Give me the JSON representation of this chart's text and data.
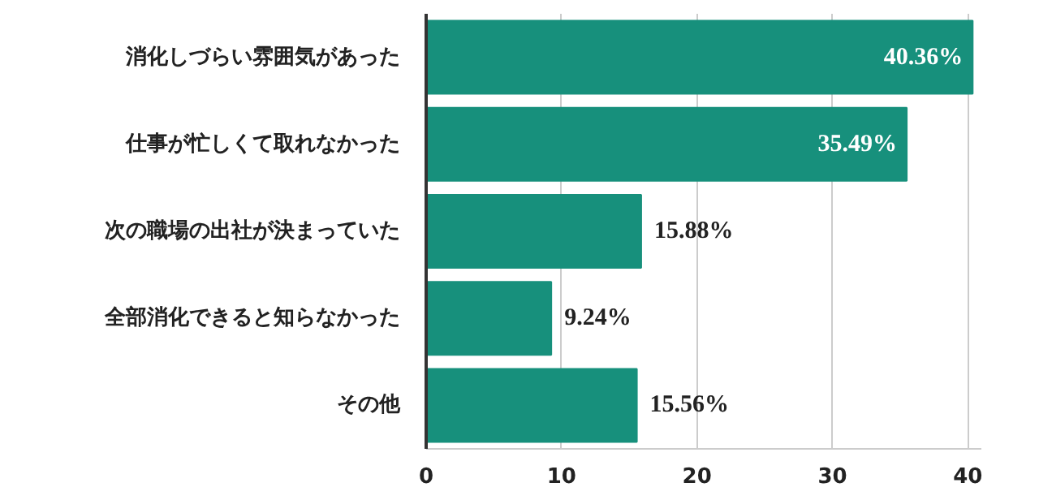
{
  "chart_data": {
    "type": "bar",
    "orientation": "horizontal",
    "categories": [
      "消化しづらい雰囲気があった",
      "仕事が忙しくて取れなかった",
      "次の職場の出社が決まっていた",
      "全部消化できると知らなかった",
      "その他"
    ],
    "values": [
      40.36,
      35.49,
      15.88,
      9.24,
      15.56
    ],
    "value_labels": [
      "40.36%",
      "35.49%",
      "15.88%",
      "9.24%",
      "15.56%"
    ],
    "color": "#17907c",
    "xlim": [
      0,
      41
    ],
    "xticks": [
      0,
      10,
      20,
      30,
      40
    ],
    "grid": "x"
  }
}
